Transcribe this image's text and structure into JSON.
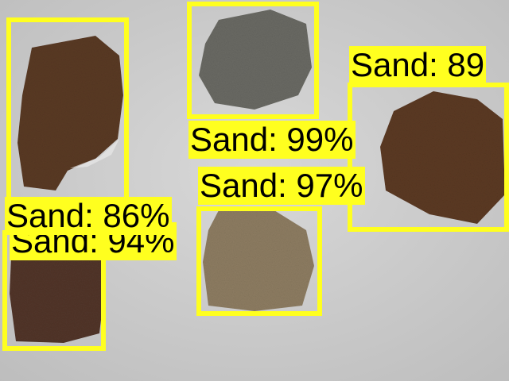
{
  "scene": {
    "background": "gray surface with rock samples",
    "box_color": "#ffff1f",
    "label_text_color": "#000000"
  },
  "detections": [
    {
      "label": "Sand: 86%",
      "class": "Sand",
      "confidence": 86
    },
    {
      "label": "Sand: 99%",
      "class": "Sand",
      "confidence": 99
    },
    {
      "label": "Sand: 97%",
      "class": "Sand",
      "confidence": 97
    },
    {
      "label": "Sand: 89",
      "class": "Sand",
      "confidence": 89
    },
    {
      "label": "Sand: 94%",
      "class": "Sand",
      "confidence": 94
    }
  ]
}
